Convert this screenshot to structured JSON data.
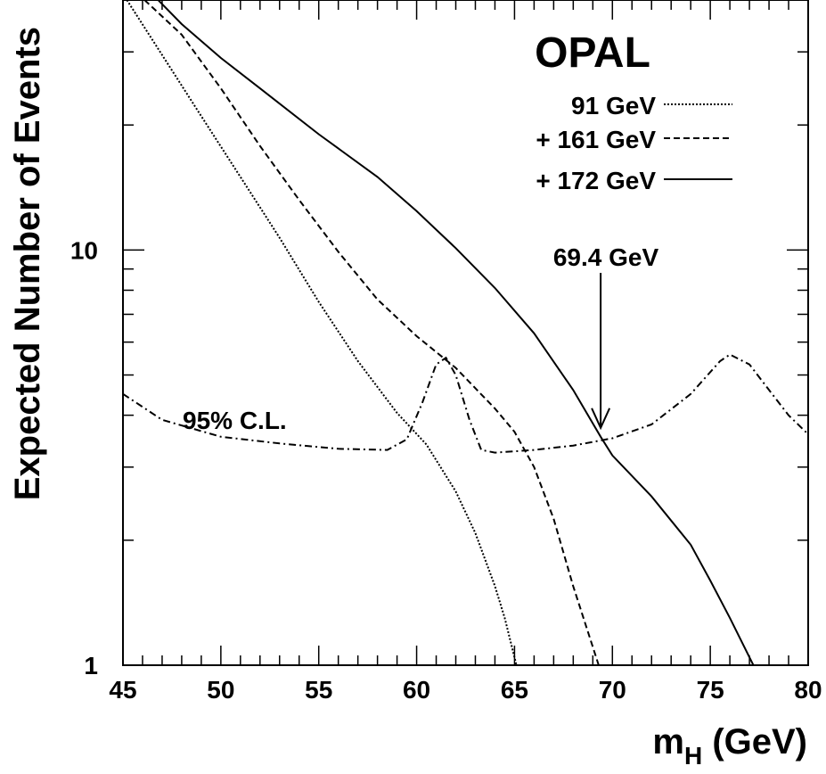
{
  "chart_data": {
    "type": "line",
    "title": "OPAL",
    "xlabel_main": "m",
    "xlabel_sub": "H",
    "xlabel_unit": " (GeV)",
    "ylabel": "Expected Number of Events",
    "yscale": "log",
    "xlim": [
      45,
      80
    ],
    "ylim": [
      1,
      40
    ],
    "x_ticks": [
      45,
      50,
      55,
      60,
      65,
      70,
      75,
      80
    ],
    "y_ticks": [
      1,
      10
    ],
    "y_tick_labels": [
      "1",
      "10"
    ],
    "series": [
      {
        "name": "91 GeV",
        "style": "dotted",
        "points": [
          [
            45.2,
            40
          ],
          [
            47,
            29.5
          ],
          [
            49,
            21
          ],
          [
            51,
            15
          ],
          [
            53,
            10.7
          ],
          [
            55,
            7.5
          ],
          [
            57,
            5.4
          ],
          [
            59,
            4.05
          ],
          [
            60.5,
            3.4
          ],
          [
            62,
            2.62
          ],
          [
            63,
            2.08
          ],
          [
            64,
            1.55
          ],
          [
            64.5,
            1.3
          ],
          [
            65.1,
            1.0
          ]
        ]
      },
      {
        "name": "+ 161 GeV",
        "style": "dashed",
        "points": [
          [
            46.1,
            40
          ],
          [
            48,
            33
          ],
          [
            50,
            24.5
          ],
          [
            52,
            17.8
          ],
          [
            54,
            13.2
          ],
          [
            56,
            9.9
          ],
          [
            58,
            7.6
          ],
          [
            60,
            6.2
          ],
          [
            62,
            5.2
          ],
          [
            64,
            4.15
          ],
          [
            65,
            3.65
          ],
          [
            66,
            3.0
          ],
          [
            67,
            2.25
          ],
          [
            68,
            1.55
          ],
          [
            69.3,
            1.0
          ]
        ]
      },
      {
        "name": "+ 172 GeV",
        "style": "solid",
        "points": [
          [
            46.8,
            40
          ],
          [
            48,
            35
          ],
          [
            50,
            29
          ],
          [
            52,
            24.5
          ],
          [
            55,
            19
          ],
          [
            58,
            15
          ],
          [
            60,
            12.4
          ],
          [
            62,
            10.1
          ],
          [
            64,
            8.1
          ],
          [
            66,
            6.3
          ],
          [
            68,
            4.6
          ],
          [
            69.4,
            3.55
          ],
          [
            70,
            3.2
          ],
          [
            72,
            2.55
          ],
          [
            74,
            1.95
          ],
          [
            75,
            1.6
          ],
          [
            76,
            1.3
          ],
          [
            77.2,
            1.0
          ]
        ]
      },
      {
        "name": "95% C.L.",
        "style": "dashdot",
        "points": [
          [
            45,
            4.5
          ],
          [
            47,
            3.9
          ],
          [
            50,
            3.55
          ],
          [
            53,
            3.42
          ],
          [
            56,
            3.32
          ],
          [
            58.5,
            3.3
          ],
          [
            59.5,
            3.5
          ],
          [
            60.3,
            4.3
          ],
          [
            61,
            5.3
          ],
          [
            61.5,
            5.5
          ],
          [
            62,
            5.0
          ],
          [
            62.7,
            3.9
          ],
          [
            63.3,
            3.3
          ],
          [
            64,
            3.25
          ],
          [
            66,
            3.3
          ],
          [
            68,
            3.38
          ],
          [
            70,
            3.52
          ],
          [
            72,
            3.8
          ],
          [
            74,
            4.5
          ],
          [
            75.5,
            5.4
          ],
          [
            76,
            5.6
          ],
          [
            77,
            5.3
          ],
          [
            78,
            4.6
          ],
          [
            79,
            4.0
          ],
          [
            80,
            3.6
          ]
        ]
      }
    ],
    "legend": {
      "position": "top-right",
      "entries": [
        "91 GeV",
        "+ 161 GeV",
        "+ 172 GeV"
      ]
    },
    "annotations": {
      "cl_label": "95% C.L.",
      "limit_label": "69.4 GeV",
      "limit_x": 69.4,
      "limit_y": 3.55
    }
  }
}
